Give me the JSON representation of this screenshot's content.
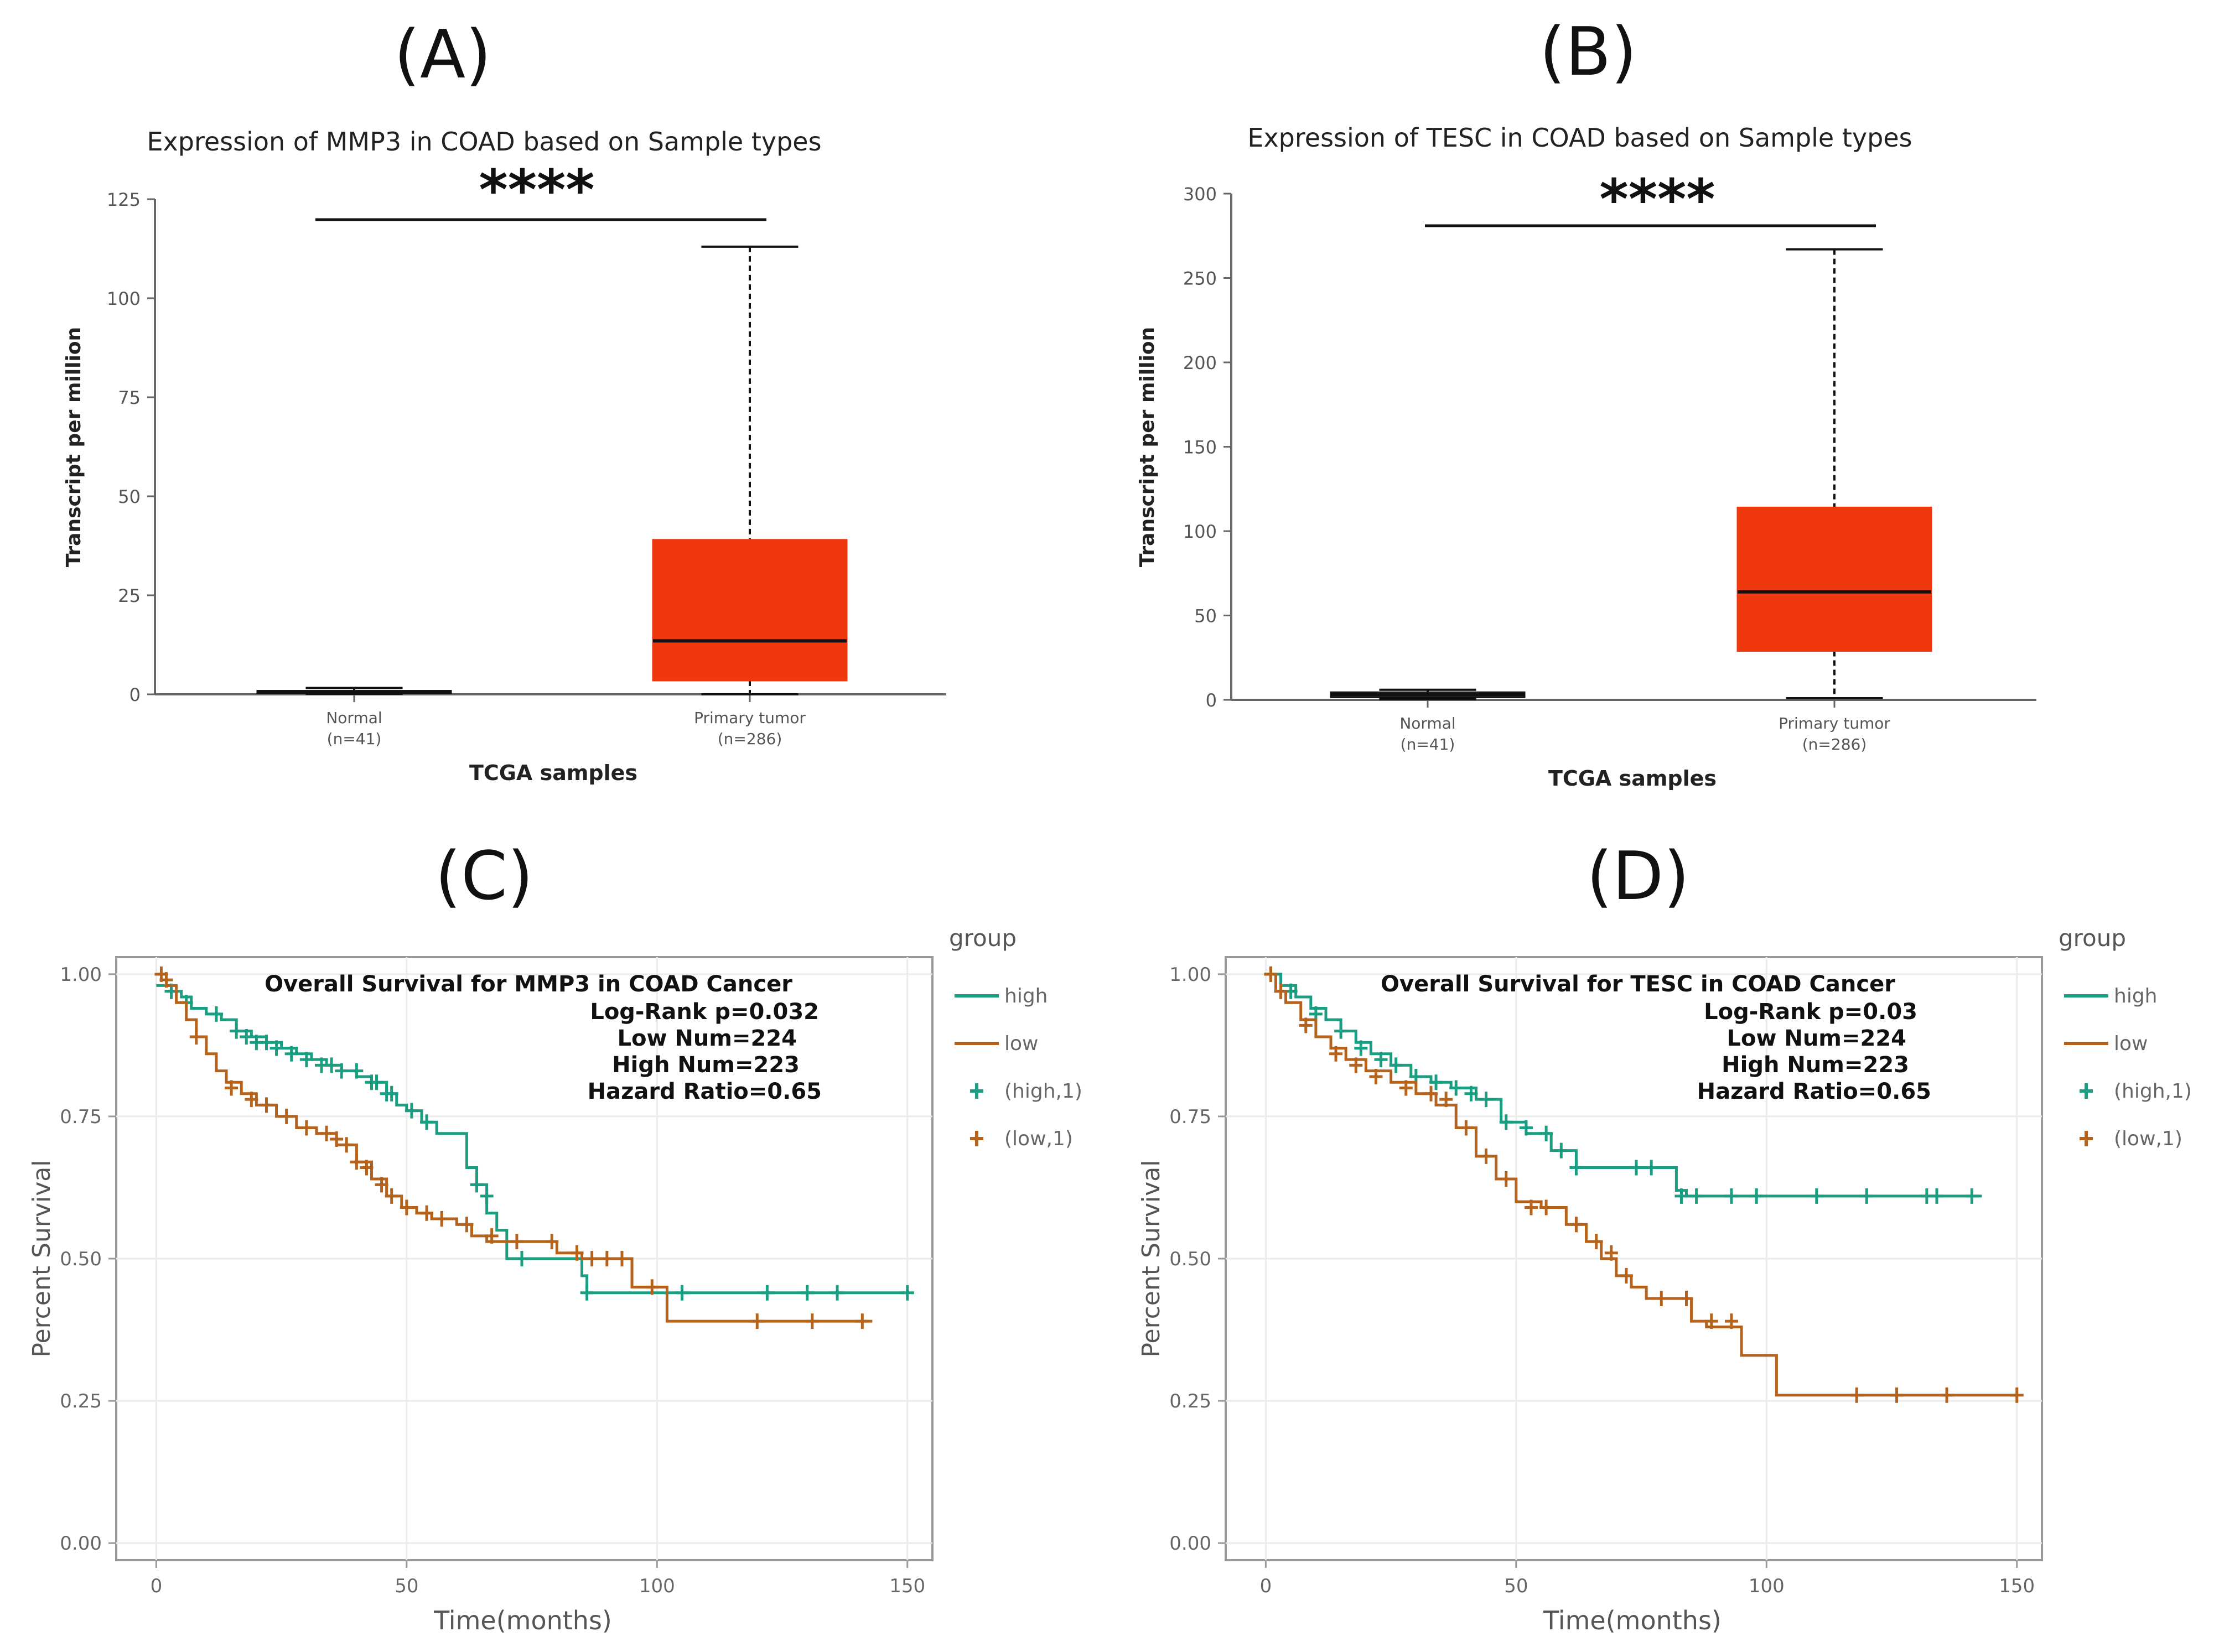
{
  "panels": [
    {
      "label": "(A)",
      "chart_data": {
        "type": "boxplot",
        "title": "Expression of MMP3 in COAD based on Sample types",
        "xlabel": "TCGA samples",
        "ylabel": "Transcript per million",
        "ylim": [
          0,
          125
        ],
        "yticks": [
          0,
          25,
          50,
          75,
          100,
          125
        ],
        "significance": "****",
        "box_color": "#f0380f",
        "categories": [
          {
            "name": "Normal",
            "n_label": "(n=41)",
            "whisker_low": 0.1,
            "q1": 0.3,
            "median": 0.6,
            "q3": 0.9,
            "whisker_high": 1.6,
            "color": "#ffffff"
          },
          {
            "name": "Primary tumor",
            "n_label": "(n=286)",
            "whisker_low": 0,
            "q1": 3.5,
            "median": 13.5,
            "q3": 39,
            "whisker_high": 113,
            "color": "#f0380f"
          }
        ]
      }
    },
    {
      "label": "(B)",
      "chart_data": {
        "type": "boxplot",
        "title": "Expression of TESC in COAD based on Sample types",
        "xlabel": "TCGA samples",
        "ylabel": "Transcript per million",
        "ylim": [
          0,
          300
        ],
        "yticks": [
          0,
          50,
          100,
          150,
          200,
          250,
          300
        ],
        "significance": "****",
        "box_color": "#f0380f",
        "categories": [
          {
            "name": "Normal",
            "n_label": "(n=41)",
            "whisker_low": 0.5,
            "q1": 1.5,
            "median": 3,
            "q3": 4.5,
            "whisker_high": 6,
            "color": "#ffffff"
          },
          {
            "name": "Primary tumor",
            "n_label": "(n=286)",
            "whisker_low": 1,
            "q1": 29,
            "median": 64,
            "q3": 114,
            "whisker_high": 267,
            "color": "#f0380f"
          }
        ]
      }
    },
    {
      "label": "(C)",
      "chart_data": {
        "type": "line",
        "title": "Overall Survival for MMP3 in COAD Cancer",
        "stats": [
          "Log-Rank p=0.032",
          "Low Num=224",
          "High Num=223",
          "Hazard Ratio=0.65"
        ],
        "xlabel": "Time(months)",
        "ylabel": "Percent Survival",
        "xlim": [
          -8,
          155
        ],
        "ylim": [
          -0.03,
          1.03
        ],
        "xticks": [
          0,
          50,
          100,
          150
        ],
        "yticks": [
          0.0,
          0.25,
          0.5,
          0.75,
          1.0
        ],
        "ytick_labels": [
          "0.00",
          "0.25",
          "0.50",
          "0.75",
          "1.00"
        ],
        "legend_title": "group",
        "legend": [
          {
            "label": "high",
            "kind": "line",
            "color": "#1a9e82"
          },
          {
            "label": "low",
            "kind": "line",
            "color": "#b5631c"
          },
          {
            "label": "(high,1)",
            "kind": "cross",
            "color": "#1a9e82"
          },
          {
            "label": "(low,1)",
            "kind": "cross",
            "color": "#b5631c"
          }
        ],
        "series": [
          {
            "name": "high",
            "color": "#1a9e82",
            "x": [
              0,
              3,
              5,
              7,
              10,
              13,
              16,
              19,
              22,
              25,
              28,
              31,
              34,
              37,
              40,
              43,
              46,
              48,
              50,
              53,
              56,
              60,
              62,
              64,
              66,
              68,
              70,
              75,
              80,
              85,
              86,
              90,
              100,
              110,
              120,
              130,
              140,
              150
            ],
            "y": [
              0.98,
              0.97,
              0.96,
              0.94,
              0.93,
              0.92,
              0.9,
              0.89,
              0.88,
              0.87,
              0.86,
              0.85,
              0.84,
              0.83,
              0.82,
              0.81,
              0.79,
              0.77,
              0.76,
              0.74,
              0.72,
              0.72,
              0.66,
              0.63,
              0.58,
              0.55,
              0.5,
              0.5,
              0.5,
              0.47,
              0.44,
              0.44,
              0.44,
              0.44,
              0.44,
              0.44,
              0.44,
              0.44
            ],
            "censor_x": [
              3,
              6,
              12,
              16,
              18,
              20,
              22,
              24,
              27,
              30,
              33,
              35,
              37,
              40,
              43,
              44,
              46,
              47,
              51,
              54,
              64,
              66,
              73,
              86,
              105,
              122,
              130,
              136,
              150
            ],
            "censor_y": [
              0.97,
              0.95,
              0.93,
              0.9,
              0.89,
              0.88,
              0.88,
              0.87,
              0.86,
              0.85,
              0.84,
              0.84,
              0.83,
              0.83,
              0.81,
              0.81,
              0.79,
              0.79,
              0.76,
              0.74,
              0.63,
              0.61,
              0.5,
              0.44,
              0.44,
              0.44,
              0.44,
              0.44,
              0.44
            ]
          },
          {
            "name": "low",
            "color": "#b5631c",
            "x": [
              0,
              2,
              4,
              6,
              8,
              10,
              12,
              14,
              17,
              20,
              24,
              28,
              32,
              36,
              40,
              43,
              46,
              49,
              52,
              55,
              60,
              63,
              66,
              70,
              75,
              80,
              85,
              90,
              95,
              100,
              102,
              110,
              120,
              130,
              143
            ],
            "y": [
              1.0,
              0.98,
              0.95,
              0.92,
              0.89,
              0.86,
              0.83,
              0.81,
              0.79,
              0.77,
              0.75,
              0.73,
              0.72,
              0.7,
              0.67,
              0.64,
              0.61,
              0.59,
              0.58,
              0.57,
              0.56,
              0.54,
              0.53,
              0.53,
              0.53,
              0.51,
              0.5,
              0.5,
              0.45,
              0.45,
              0.39,
              0.39,
              0.39,
              0.39,
              0.39
            ],
            "censor_x": [
              1,
              2,
              8,
              15,
              19,
              22,
              26,
              30,
              34,
              36,
              38,
              40,
              42,
              45,
              47,
              50,
              54,
              57,
              62,
              67,
              72,
              79,
              84,
              87,
              90,
              93,
              99,
              120,
              131,
              141
            ],
            "censor_y": [
              1.0,
              0.99,
              0.89,
              0.8,
              0.78,
              0.77,
              0.75,
              0.73,
              0.72,
              0.71,
              0.7,
              0.67,
              0.66,
              0.63,
              0.61,
              0.59,
              0.58,
              0.57,
              0.56,
              0.54,
              0.53,
              0.53,
              0.51,
              0.5,
              0.5,
              0.5,
              0.45,
              0.39,
              0.39,
              0.39
            ]
          }
        ]
      }
    },
    {
      "label": "(D)",
      "chart_data": {
        "type": "line",
        "title": "Overall Survival for TESC in COAD Cancer",
        "stats": [
          "Log-Rank p=0.03",
          "Low Num=224",
          "High Num=223",
          "Hazard Ratio=0.65"
        ],
        "xlabel": "Time(months)",
        "ylabel": "Percent Survival",
        "xlim": [
          -8,
          155
        ],
        "ylim": [
          -0.03,
          1.03
        ],
        "xticks": [
          0,
          50,
          100,
          150
        ],
        "yticks": [
          0.0,
          0.25,
          0.5,
          0.75,
          1.0
        ],
        "ytick_labels": [
          "0.00",
          "0.25",
          "0.50",
          "0.75",
          "1.00"
        ],
        "legend_title": "group",
        "legend": [
          {
            "label": "high",
            "kind": "line",
            "color": "#1a9e82"
          },
          {
            "label": "low",
            "kind": "line",
            "color": "#b5631c"
          },
          {
            "label": "(high,1)",
            "kind": "cross",
            "color": "#1a9e82"
          },
          {
            "label": "(low,1)",
            "kind": "cross",
            "color": "#b5631c"
          }
        ],
        "series": [
          {
            "name": "high",
            "color": "#1a9e82",
            "x": [
              0,
              3,
              6,
              9,
              12,
              15,
              18,
              21,
              25,
              29,
              33,
              37,
              42,
              47,
              52,
              57,
              62,
              70,
              80,
              82,
              84,
              90,
              100,
              110,
              120,
              130,
              143
            ],
            "y": [
              1.0,
              0.98,
              0.96,
              0.94,
              0.92,
              0.9,
              0.88,
              0.86,
              0.84,
              0.82,
              0.81,
              0.8,
              0.78,
              0.74,
              0.72,
              0.69,
              0.66,
              0.66,
              0.66,
              0.62,
              0.61,
              0.61,
              0.61,
              0.61,
              0.61,
              0.61,
              0.61
            ],
            "censor_x": [
              1,
              5,
              10,
              15,
              19,
              23,
              26,
              30,
              34,
              38,
              41,
              44,
              48,
              52,
              56,
              59,
              62,
              74,
              77,
              83,
              86,
              93,
              98,
              110,
              120,
              132,
              134,
              141
            ],
            "censor_y": [
              1.0,
              0.97,
              0.93,
              0.9,
              0.87,
              0.85,
              0.84,
              0.82,
              0.81,
              0.8,
              0.79,
              0.78,
              0.74,
              0.73,
              0.72,
              0.69,
              0.66,
              0.66,
              0.66,
              0.61,
              0.61,
              0.61,
              0.61,
              0.61,
              0.61,
              0.61,
              0.61,
              0.61
            ]
          },
          {
            "name": "low",
            "color": "#b5631c",
            "x": [
              0,
              2,
              4,
              7,
              10,
              13,
              16,
              20,
              25,
              30,
              34,
              38,
              42,
              46,
              50,
              55,
              60,
              64,
              67,
              70,
              73,
              76,
              80,
              85,
              88,
              90,
              95,
              100,
              102,
              110,
              120,
              130,
              150
            ],
            "y": [
              1.0,
              0.97,
              0.95,
              0.92,
              0.89,
              0.87,
              0.85,
              0.83,
              0.81,
              0.79,
              0.77,
              0.73,
              0.68,
              0.64,
              0.6,
              0.59,
              0.56,
              0.53,
              0.5,
              0.47,
              0.45,
              0.43,
              0.43,
              0.39,
              0.38,
              0.38,
              0.33,
              0.33,
              0.26,
              0.26,
              0.26,
              0.26,
              0.26
            ],
            "censor_x": [
              1,
              3,
              8,
              14,
              18,
              22,
              28,
              33,
              36,
              40,
              44,
              48,
              53,
              56,
              62,
              66,
              69,
              72,
              79,
              84,
              89,
              93,
              118,
              126,
              136,
              150
            ],
            "censor_y": [
              1.0,
              0.97,
              0.91,
              0.86,
              0.84,
              0.82,
              0.8,
              0.79,
              0.78,
              0.73,
              0.68,
              0.64,
              0.59,
              0.59,
              0.56,
              0.53,
              0.51,
              0.47,
              0.43,
              0.43,
              0.39,
              0.39,
              0.26,
              0.26,
              0.26,
              0.26
            ]
          }
        ]
      }
    }
  ]
}
